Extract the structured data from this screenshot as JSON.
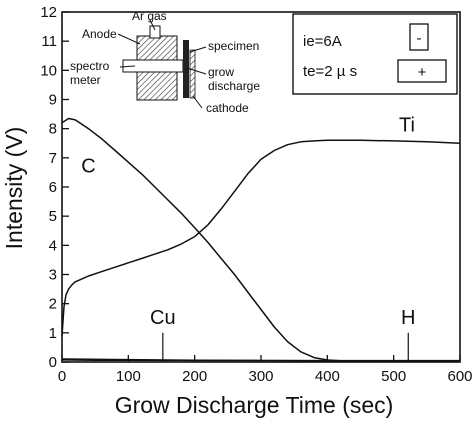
{
  "chart_data": {
    "type": "line",
    "xlabel": "Grow Discharge Time (sec)",
    "ylabel": "Intensity (V)",
    "xlim": [
      0,
      600
    ],
    "ylim": [
      0,
      12
    ],
    "xticks": [
      0,
      100,
      200,
      300,
      400,
      500,
      600
    ],
    "yticks": [
      0,
      1,
      2,
      3,
      4,
      5,
      6,
      7,
      8,
      9,
      10,
      11,
      12
    ],
    "grid": false,
    "series": [
      {
        "name": "C",
        "x": [
          0,
          10,
          20,
          40,
          60,
          80,
          100,
          120,
          140,
          160,
          180,
          200,
          220,
          240,
          260,
          280,
          300,
          320,
          340,
          360,
          380,
          400,
          420,
          450,
          500,
          550,
          600
        ],
        "y": [
          8.2,
          8.35,
          8.3,
          8.0,
          7.65,
          7.25,
          6.85,
          6.45,
          6.0,
          5.55,
          5.1,
          4.6,
          4.1,
          3.55,
          3.0,
          2.4,
          1.8,
          1.2,
          0.7,
          0.35,
          0.15,
          0.07,
          0.04,
          0.03,
          0.03,
          0.03,
          0.03
        ]
      },
      {
        "name": "Ti",
        "x": [
          0,
          3,
          6,
          10,
          15,
          20,
          30,
          40,
          60,
          80,
          100,
          120,
          140,
          160,
          180,
          200,
          220,
          240,
          260,
          280,
          300,
          320,
          340,
          360,
          380,
          400,
          450,
          500,
          550,
          600
        ],
        "y": [
          0.9,
          1.9,
          2.3,
          2.5,
          2.65,
          2.75,
          2.85,
          2.95,
          3.1,
          3.25,
          3.4,
          3.55,
          3.7,
          3.85,
          4.05,
          4.3,
          4.7,
          5.25,
          5.85,
          6.45,
          6.95,
          7.25,
          7.45,
          7.55,
          7.58,
          7.6,
          7.6,
          7.58,
          7.55,
          7.5
        ]
      },
      {
        "name": "Cu",
        "x": [
          0,
          50,
          100,
          150,
          200,
          300,
          400,
          500,
          600
        ],
        "y": [
          0.07,
          0.06,
          0.06,
          0.05,
          0.05,
          0.05,
          0.05,
          0.05,
          0.05
        ]
      },
      {
        "name": "H",
        "x": [
          0,
          100,
          200,
          300,
          400,
          500,
          600
        ],
        "y": [
          0.1,
          0.08,
          0.06,
          0.05,
          0.04,
          0.03,
          0.02
        ]
      }
    ],
    "series_labels": [
      {
        "text": "C",
        "x": 40,
        "y": 6.5
      },
      {
        "text": "Ti",
        "x": 520,
        "y": 7.9
      },
      {
        "text": "Cu",
        "x": 152,
        "y": 1.3
      },
      {
        "text": "H",
        "x": 522,
        "y": 1.3
      }
    ],
    "markers": [
      {
        "x": 152,
        "y0": 0,
        "y1": 1.0
      },
      {
        "x": 522,
        "y0": 0,
        "y1": 1.0
      }
    ],
    "legend_box": {
      "lines": [
        "ie=6A",
        "te=2 µ s"
      ],
      "minus": "-",
      "plus": "+"
    },
    "inset_diagram": {
      "labels": [
        "Ar gas",
        "Anode",
        "specimen",
        "spectro",
        "meter",
        "grow",
        "discharge",
        "cathode"
      ]
    }
  }
}
